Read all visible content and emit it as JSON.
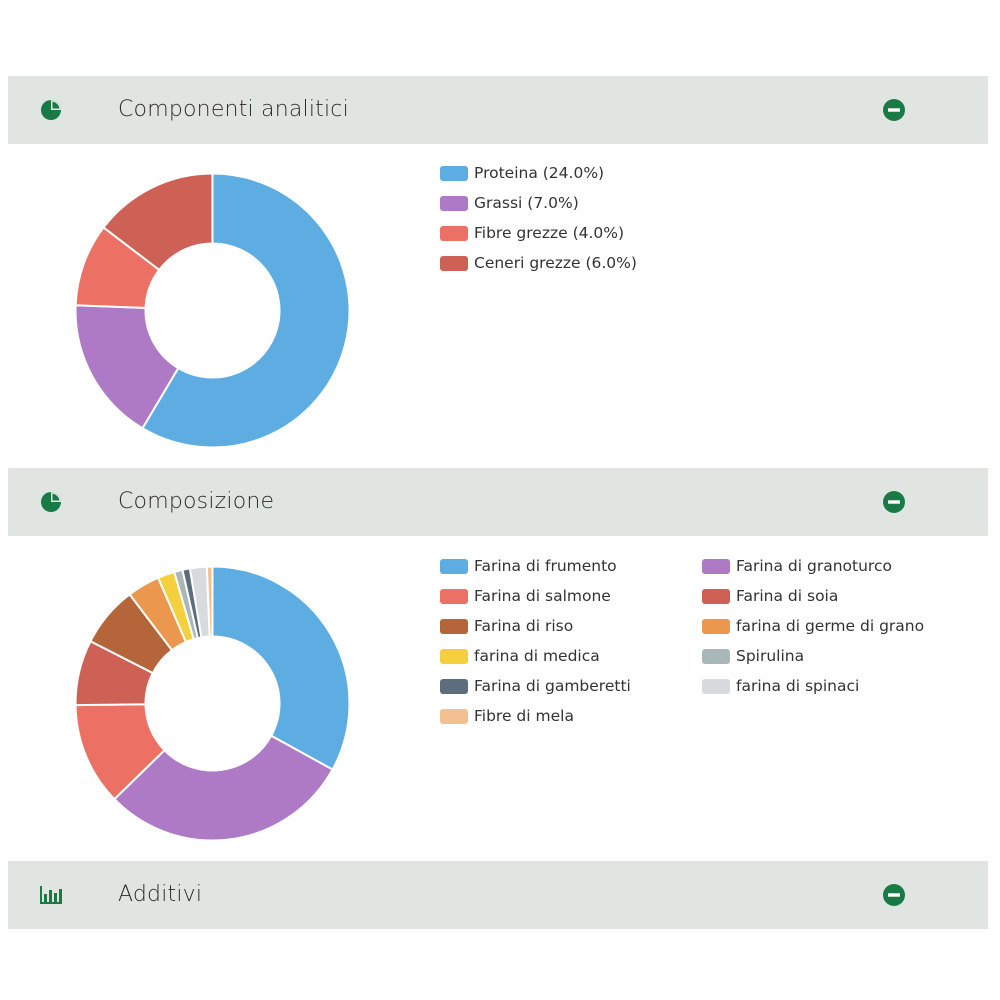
{
  "colors": {
    "header_bg": "#e1e5e2",
    "icon_green": "#1a7a45"
  },
  "sections": [
    {
      "title": "Componenti analitici",
      "icon": "pie-chart-icon",
      "collapse_icon": "minus-circle-icon"
    },
    {
      "title": "Composizione",
      "icon": "pie-chart-icon",
      "collapse_icon": "minus-circle-icon"
    },
    {
      "title": "Additivi",
      "icon": "bar-chart-icon",
      "collapse_icon": "minus-circle-icon"
    }
  ],
  "chart_data": [
    {
      "type": "pie",
      "title": "Componenti analitici",
      "categories": [
        "Proteina",
        "Grassi",
        "Fibre grezze",
        "Ceneri grezze"
      ],
      "values": [
        24.0,
        7.0,
        4.0,
        6.0
      ],
      "legend_labels": [
        "Proteina (24.0%)",
        "Grassi (7.0%)",
        "Fibre grezze (4.0%)",
        "Ceneri grezze (6.0%)"
      ],
      "colors": [
        "#5dade2",
        "#af7ac5",
        "#ec7063",
        "#cd6155"
      ],
      "legend": "right"
    },
    {
      "type": "pie",
      "title": "Composizione",
      "categories": [
        "Farina di frumento",
        "Farina di granoturco",
        "Farina di salmone",
        "Farina di soia",
        "Farina di riso",
        "farina di germe di grano",
        "farina di medica",
        "Spirulina",
        "Farina di gamberetti",
        "farina di spinaci",
        "Fibre di mela"
      ],
      "values": [
        30,
        27,
        11,
        7,
        6.5,
        3.5,
        1.8,
        0.9,
        0.8,
        1.8,
        0.6
      ],
      "legend_labels": [
        "Farina di frumento",
        "Farina di granoturco",
        "Farina di salmone",
        "Farina di soia",
        "Farina di riso",
        "farina di germe di grano",
        "farina di medica",
        "Spirulina",
        "Farina di gamberetti",
        "farina di spinaci",
        "Fibre di mela"
      ],
      "colors": [
        "#5dade2",
        "#af7ac5",
        "#ec7063",
        "#cd6155",
        "#b5653a",
        "#eb984e",
        "#f4d03f",
        "#aab7b8",
        "#5d6d7e",
        "#d7dbdd",
        "#f5c08f"
      ],
      "legend": "right"
    }
  ]
}
